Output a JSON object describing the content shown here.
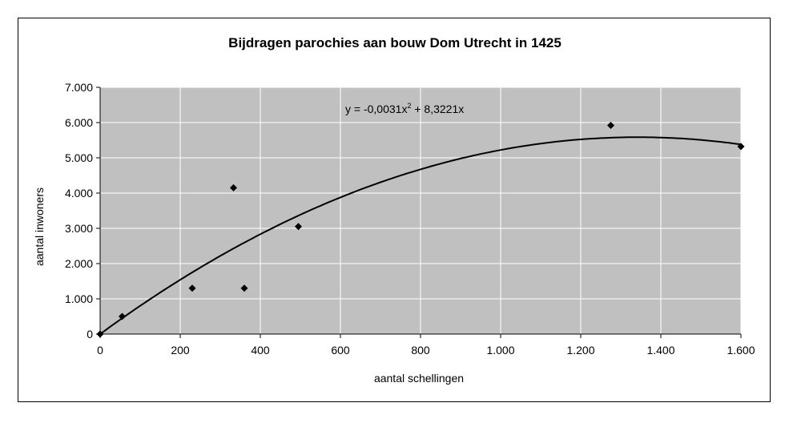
{
  "chart_data": {
    "type": "scatter",
    "title": "Bijdragen parochies aan bouw Dom Utrecht in 1425",
    "xlabel": "aantal schellingen",
    "ylabel": "aantal inwoners",
    "xlim": [
      0,
      1600
    ],
    "ylim": [
      0,
      7000
    ],
    "x_ticks": [
      0,
      200,
      400,
      600,
      800,
      1000,
      1200,
      1400,
      1600
    ],
    "x_tick_labels": [
      "0",
      "200",
      "400",
      "600",
      "800",
      "1.000",
      "1.200",
      "1.400",
      "1.600"
    ],
    "y_ticks": [
      0,
      1000,
      2000,
      3000,
      4000,
      5000,
      6000,
      7000
    ],
    "y_tick_labels": [
      "0",
      "1.000",
      "2.000",
      "3.000",
      "4.000",
      "5.000",
      "6.000",
      "7.000"
    ],
    "grid": true,
    "plot_background": "#c0c0c0",
    "grid_color": "#ffffff",
    "marker_color": "#000000",
    "marker": "diamond",
    "points": [
      {
        "x": 0,
        "y": 0
      },
      {
        "x": 55,
        "y": 500
      },
      {
        "x": 230,
        "y": 1300
      },
      {
        "x": 333,
        "y": 4150
      },
      {
        "x": 360,
        "y": 1300
      },
      {
        "x": 495,
        "y": 3050
      },
      {
        "x": 1275,
        "y": 5920
      },
      {
        "x": 1600,
        "y": 5320
      }
    ],
    "trendline": {
      "type": "polynomial",
      "coefficients": {
        "a": -0.0031,
        "b": 8.3221,
        "c": 0
      },
      "equation_prefix": "y = -0,0031x",
      "equation_sup": "2",
      "equation_suffix": " + 8,3221x"
    }
  }
}
